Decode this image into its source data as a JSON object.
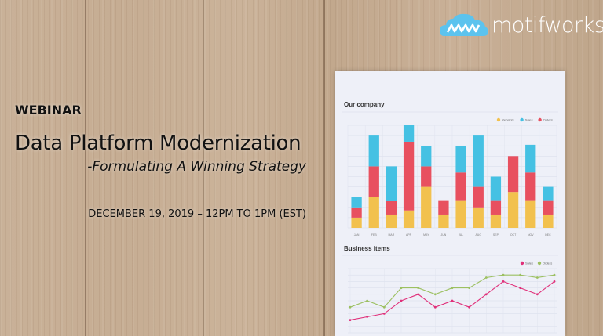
{
  "brand": {
    "name": "motifworks",
    "logo_mark": "MW",
    "color": "#5cc3ee"
  },
  "banner": {
    "eyebrow": "WEBINAR",
    "title": "Data Platform Modernization",
    "subtitle": "-Formulating A Winning Strategy",
    "date": "DECEMBER 19, 2019 – 12PM TO 1PM (EST)"
  },
  "paper_charts": [
    {
      "type": "bar",
      "stacked": true,
      "title": "Our company",
      "categories": [
        "JAN",
        "FEB",
        "MAR",
        "APR",
        "MAY",
        "JUN",
        "JUL",
        "AUG",
        "SEP",
        "OCT",
        "NOV",
        "DEC"
      ],
      "ylim": [
        0,
        100
      ],
      "series": [
        {
          "name": "Receipts",
          "color": "#f2c14e",
          "values": [
            10,
            30,
            13,
            17,
            40,
            13,
            27,
            20,
            13,
            35,
            27,
            13
          ]
        },
        {
          "name": "Orders",
          "color": "#e8505f",
          "values": [
            10,
            30,
            13,
            67,
            20,
            14,
            27,
            20,
            14,
            35,
            27,
            14
          ]
        },
        {
          "name": "Sales",
          "color": "#45c1e3",
          "values": [
            10,
            30,
            34,
            16,
            20,
            0,
            26,
            50,
            23,
            0,
            27,
            13
          ]
        }
      ]
    },
    {
      "type": "line",
      "title": "Business items",
      "ylim": [
        0,
        100
      ],
      "series": [
        {
          "name": "Sales",
          "color": "#e0307a",
          "values": [
            20,
            25,
            30,
            50,
            60,
            40,
            50,
            40,
            60,
            80,
            70,
            60,
            80
          ]
        },
        {
          "name": "Orders",
          "color": "#9cc061",
          "values": [
            40,
            50,
            40,
            70,
            70,
            60,
            70,
            70,
            86,
            90,
            90,
            86,
            90
          ]
        }
      ]
    }
  ]
}
